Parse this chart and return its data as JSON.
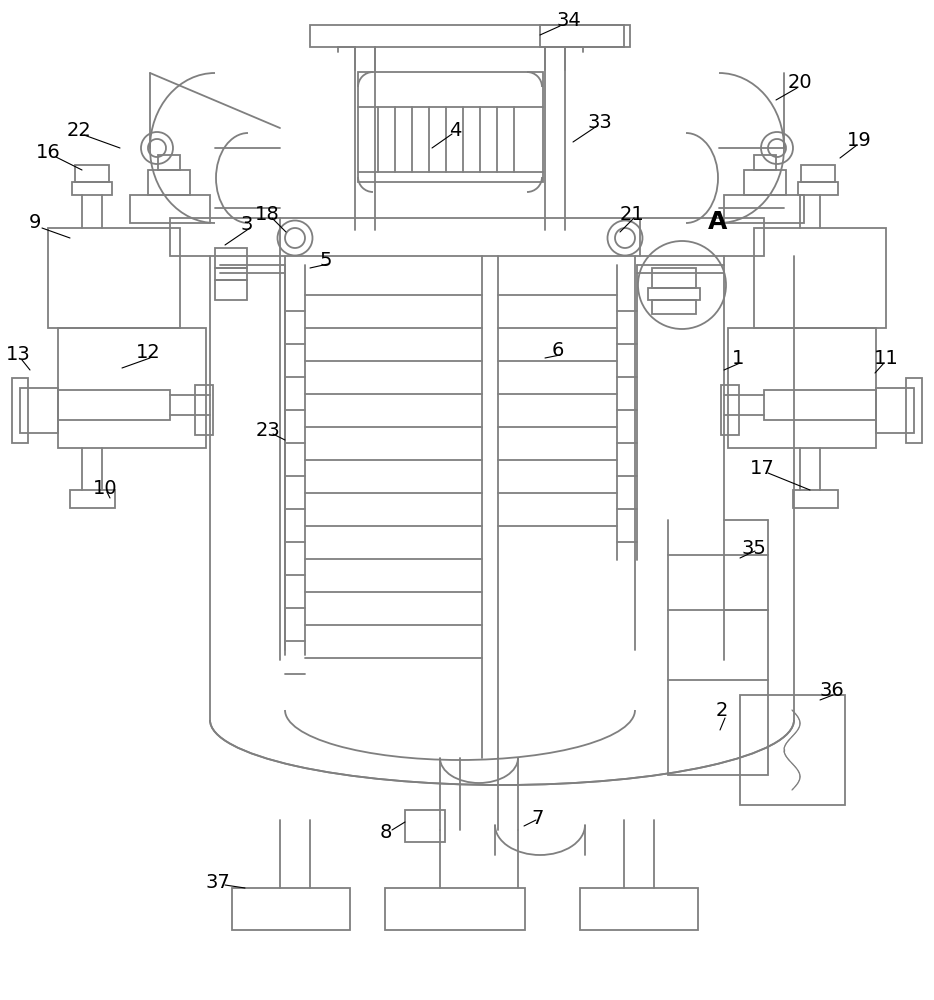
{
  "bg_color": "#ffffff",
  "lc": "#7f7f7f",
  "lw": 1.3,
  "fig_w": 9.34,
  "fig_h": 10.0,
  "dpi": 100
}
